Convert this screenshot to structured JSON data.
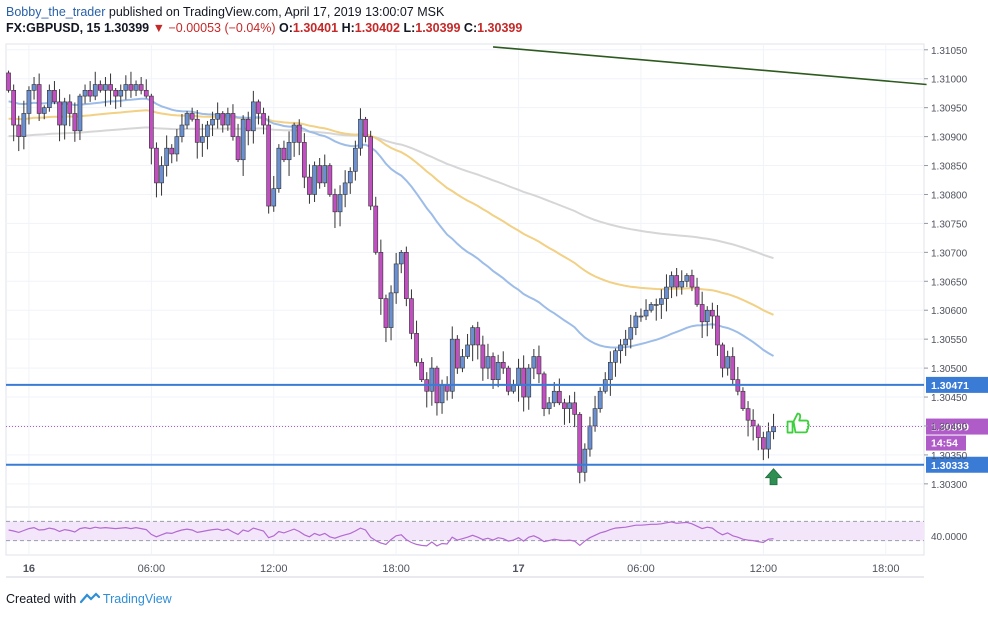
{
  "header": {
    "author": "Bobby_the_trader",
    "published": "published on TradingView.com, April 17, 2019 13:00:07 MSK",
    "symbol": "FX:GBPUSD, 15",
    "last": "1.30399",
    "change_arrow": "▼",
    "change": "−0.00053 (−0.04%)",
    "o_label": "O:",
    "o": "1.30401",
    "h_label": "H:",
    "h": "1.30402",
    "l_label": "L:",
    "l": "1.30399",
    "c_label": "C:",
    "c": "1.30399"
  },
  "footer": {
    "created_with": "Created with",
    "brand": "TradingView",
    "logo_icon": "tradingview-logo-icon"
  },
  "colors": {
    "bull": "#6b8fd0",
    "bear": "#c24fc2",
    "wick": "#333333",
    "ema_fast": "#9dbde8",
    "ema_mid": "#f2d084",
    "ema_slow": "#d6d6d6",
    "trendline": "#2d5a1f",
    "hline": "#3a7bd5",
    "price_dotted": "#b05cc8",
    "rsi_line": "#b36ad1",
    "rsi_band": "#f3e6fb",
    "thumb": "#3ecf3e",
    "arrow": "#2f8f52"
  },
  "chart_data": {
    "type": "candlestick",
    "symbol": "FX:GBPUSD",
    "interval": "15",
    "ylim": [
      1.3026,
      1.3106
    ],
    "y_ticks": [
      1.303,
      1.3035,
      1.304,
      1.3045,
      1.305,
      1.3055,
      1.306,
      1.3065,
      1.307,
      1.3075,
      1.308,
      1.3085,
      1.309,
      1.3095,
      1.31,
      1.3105
    ],
    "y_tick_labels": [
      "1.30300",
      "1.30350",
      "1.30400",
      "1.30450",
      "1.30500",
      "1.30550",
      "1.30600",
      "1.30650",
      "1.30700",
      "1.30750",
      "1.30800",
      "1.30850",
      "1.30900",
      "1.30950",
      "1.31000",
      "1.31050"
    ],
    "x_ticks": [
      {
        "bar": 4,
        "label": "16"
      },
      {
        "bar": 28,
        "label": "06:00"
      },
      {
        "bar": 52,
        "label": "12:00"
      },
      {
        "bar": 76,
        "label": "18:00"
      },
      {
        "bar": 100,
        "label": "17"
      },
      {
        "bar": 124,
        "label": "06:00"
      },
      {
        "bar": 148,
        "label": "12:00"
      },
      {
        "bar": 172,
        "label": "18:00"
      }
    ],
    "bars_total": 180,
    "closes": [
      1.3098,
      1.3092,
      1.309,
      1.3094,
      1.3098,
      1.3099,
      1.3094,
      1.3095,
      1.3098,
      1.3096,
      1.3092,
      1.3096,
      1.3094,
      1.3091,
      1.3097,
      1.3098,
      1.3097,
      1.3099,
      1.3098,
      1.3099,
      1.3098,
      1.3097,
      1.3098,
      1.3099,
      1.3098,
      1.3099,
      1.3098,
      1.3097,
      1.3088,
      1.3082,
      1.3085,
      1.3088,
      1.3087,
      1.309,
      1.3092,
      1.3094,
      1.3093,
      1.3089,
      1.309,
      1.3092,
      1.3093,
      1.3094,
      1.3092,
      1.3094,
      1.309,
      1.3086,
      1.3093,
      1.3091,
      1.3096,
      1.3094,
      1.3092,
      1.3078,
      1.3081,
      1.3088,
      1.3086,
      1.3089,
      1.3092,
      1.3089,
      1.3083,
      1.308,
      1.3085,
      1.3082,
      1.3085,
      1.308,
      1.3077,
      1.308,
      1.3082,
      1.3084,
      1.3088,
      1.3093,
      1.309,
      1.3078,
      1.307,
      1.3062,
      1.3057,
      1.3063,
      1.3068,
      1.307,
      1.3062,
      1.3056,
      1.3051,
      1.3048,
      1.3046,
      1.305,
      1.3044,
      1.3047,
      1.3046,
      1.3055,
      1.305,
      1.3052,
      1.3054,
      1.3057,
      1.3054,
      1.305,
      1.3052,
      1.3048,
      1.3051,
      1.305,
      1.3046,
      1.3047,
      1.305,
      1.3045,
      1.305,
      1.3052,
      1.3049,
      1.3043,
      1.3044,
      1.3046,
      1.3044,
      1.3043,
      1.3044,
      1.3042,
      1.3032,
      1.3036,
      1.304,
      1.3043,
      1.3046,
      1.3048,
      1.3051,
      1.3053,
      1.3054,
      1.3055,
      1.3057,
      1.3059,
      1.3059,
      1.306,
      1.3061,
      1.3061,
      1.3062,
      1.3064,
      1.3066,
      1.3064,
      1.3065,
      1.3066,
      1.3064,
      1.3061,
      1.3058,
      1.306,
      1.3059,
      1.3054,
      1.305,
      1.3052,
      1.3048,
      1.3046,
      1.3043,
      1.3041,
      1.304,
      1.3038,
      1.3036,
      1.3039,
      1.30399
    ],
    "rsi": {
      "levels": [
        30,
        40,
        70
      ],
      "level_label": "40.0000",
      "values": [
        52,
        50,
        47,
        51,
        55,
        57,
        52,
        53,
        56,
        54,
        49,
        53,
        51,
        48,
        55,
        57,
        55,
        58,
        56,
        57,
        56,
        55,
        56,
        57,
        55,
        57,
        55,
        53,
        43,
        38,
        42,
        46,
        45,
        49,
        52,
        54,
        52,
        47,
        49,
        51,
        53,
        54,
        51,
        54,
        48,
        43,
        52,
        49,
        56,
        53,
        50,
        36,
        40,
        49,
        46,
        50,
        54,
        49,
        42,
        38,
        45,
        41,
        45,
        38,
        35,
        39,
        42,
        45,
        50,
        56,
        52,
        37,
        30,
        25,
        22,
        32,
        40,
        42,
        32,
        26,
        22,
        20,
        19,
        27,
        19,
        24,
        23,
        37,
        31,
        34,
        37,
        41,
        37,
        32,
        35,
        31,
        36,
        34,
        29,
        31,
        36,
        29,
        37,
        40,
        35,
        28,
        30,
        33,
        31,
        30,
        31,
        29,
        20,
        29,
        36,
        41,
        46,
        49,
        53,
        56,
        57,
        58,
        60,
        62,
        62,
        63,
        64,
        64,
        65,
        67,
        69,
        66,
        67,
        68,
        65,
        60,
        55,
        58,
        56,
        48,
        42,
        46,
        40,
        37,
        33,
        31,
        30,
        28,
        26,
        33,
        34
      ]
    },
    "lines": {
      "trendline": {
        "from_bar": 95,
        "from_price": 1.31055,
        "to_bar": 180,
        "to_price": 1.3099
      },
      "support_upper": {
        "price": 1.30471,
        "label": "1.30471"
      },
      "support_lower": {
        "price": 1.30333,
        "label": "1.30333"
      },
      "current_price": {
        "price": 1.30399,
        "label": "1.30399"
      },
      "countdown": "14:54"
    },
    "annotations": [
      "thumbs-up-icon",
      "up-arrow-icon"
    ]
  }
}
